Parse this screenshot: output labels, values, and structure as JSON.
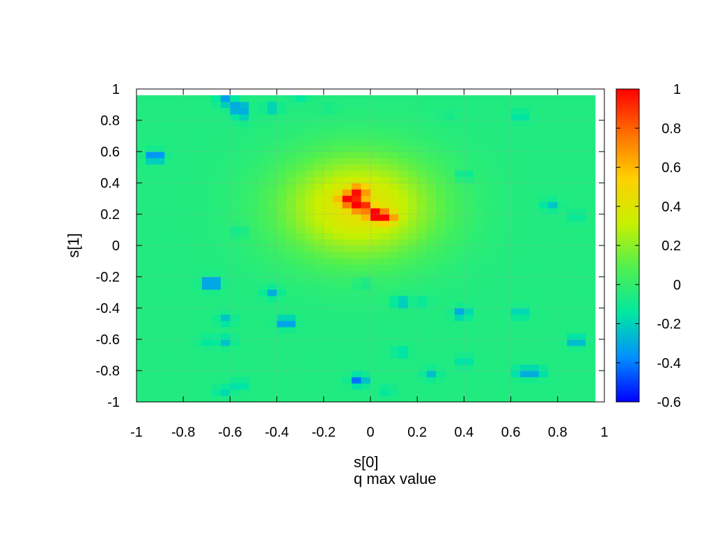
{
  "chart_data": {
    "type": "heatmap",
    "title": "q max value",
    "xlabel": "s[0]",
    "ylabel": "s[1]",
    "xlim": [
      -1,
      1
    ],
    "ylim": [
      -1,
      1
    ],
    "x_ticks": [
      "-1",
      "-0.8",
      "-0.6",
      "-0.4",
      "-0.2",
      "0",
      "0.2",
      "0.4",
      "0.6",
      "0.8",
      "1"
    ],
    "y_ticks": [
      "-1",
      "-0.8",
      "-0.6",
      "-0.4",
      "-0.2",
      "0",
      "0.2",
      "0.4",
      "0.6",
      "0.8",
      "1"
    ],
    "grid": true,
    "colorbar": {
      "range": [
        -0.6,
        1
      ],
      "ticks": [
        "1",
        "0.8",
        "0.6",
        "0.4",
        "0.2",
        "0",
        "-0.2",
        "-0.4",
        "-0.6"
      ],
      "palette": [
        "#0000ff",
        "#0090ff",
        "#00e8a0",
        "#50f050",
        "#c8f000",
        "#ffd000",
        "#ff7000",
        "#ff0000"
      ]
    },
    "background_value": -0.05,
    "peak": {
      "x": -0.05,
      "y": 0.25,
      "value": 0.85,
      "radius": 0.33
    },
    "spots": [
      {
        "x": -0.05,
        "y": 0.26,
        "value": 0.9
      },
      {
        "x": 0.02,
        "y": 0.2,
        "value": 0.85
      },
      {
        "x": 0.07,
        "y": 0.18,
        "value": 0.6
      },
      {
        "x": -0.1,
        "y": 0.3,
        "value": 0.65
      },
      {
        "x": -0.05,
        "y": 0.35,
        "value": 0.55
      },
      {
        "x": -0.92,
        "y": 0.57,
        "value": -0.5
      },
      {
        "x": -0.62,
        "y": 0.93,
        "value": -0.35
      },
      {
        "x": -0.56,
        "y": 0.88,
        "value": -0.45
      },
      {
        "x": -0.55,
        "y": 0.82,
        "value": -0.2
      },
      {
        "x": -0.42,
        "y": 0.88,
        "value": -0.25
      },
      {
        "x": -0.3,
        "y": 0.95,
        "value": -0.15
      },
      {
        "x": -0.18,
        "y": 0.88,
        "value": -0.1
      },
      {
        "x": 0.33,
        "y": 0.83,
        "value": -0.1
      },
      {
        "x": 0.64,
        "y": 0.83,
        "value": -0.2
      },
      {
        "x": 0.83,
        "y": 0.95,
        "value": -0.05
      },
      {
        "x": 0.4,
        "y": 0.45,
        "value": -0.2
      },
      {
        "x": 0.77,
        "y": 0.26,
        "value": -0.25
      },
      {
        "x": 0.88,
        "y": 0.19,
        "value": -0.15
      },
      {
        "x": -0.56,
        "y": 0.09,
        "value": -0.15
      },
      {
        "x": -0.68,
        "y": -0.24,
        "value": -0.55
      },
      {
        "x": -0.42,
        "y": -0.3,
        "value": -0.3
      },
      {
        "x": -0.36,
        "y": -0.49,
        "value": -0.45
      },
      {
        "x": -0.62,
        "y": -0.47,
        "value": -0.25
      },
      {
        "x": -0.62,
        "y": -0.61,
        "value": -0.25
      },
      {
        "x": -0.7,
        "y": -0.61,
        "value": -0.15
      },
      {
        "x": -0.03,
        "y": -0.24,
        "value": -0.15
      },
      {
        "x": 0.13,
        "y": -0.36,
        "value": -0.3
      },
      {
        "x": 0.22,
        "y": -0.36,
        "value": -0.15
      },
      {
        "x": 0.13,
        "y": -0.68,
        "value": -0.2
      },
      {
        "x": 0.39,
        "y": -0.43,
        "value": -0.35
      },
      {
        "x": 0.4,
        "y": -0.74,
        "value": -0.2
      },
      {
        "x": 0.26,
        "y": -0.82,
        "value": -0.25
      },
      {
        "x": 0.64,
        "y": -0.43,
        "value": -0.25
      },
      {
        "x": 0.65,
        "y": -0.81,
        "value": -0.3
      },
      {
        "x": 0.71,
        "y": -0.81,
        "value": -0.3
      },
      {
        "x": 0.88,
        "y": -0.61,
        "value": -0.35
      },
      {
        "x": -0.05,
        "y": -0.86,
        "value": -0.45
      },
      {
        "x": 0.07,
        "y": -0.93,
        "value": -0.15
      },
      {
        "x": -0.56,
        "y": -0.89,
        "value": -0.2
      },
      {
        "x": -0.63,
        "y": -0.93,
        "value": -0.2
      },
      {
        "x": -0.52,
        "y": 0.22,
        "value": -0.05
      }
    ]
  }
}
